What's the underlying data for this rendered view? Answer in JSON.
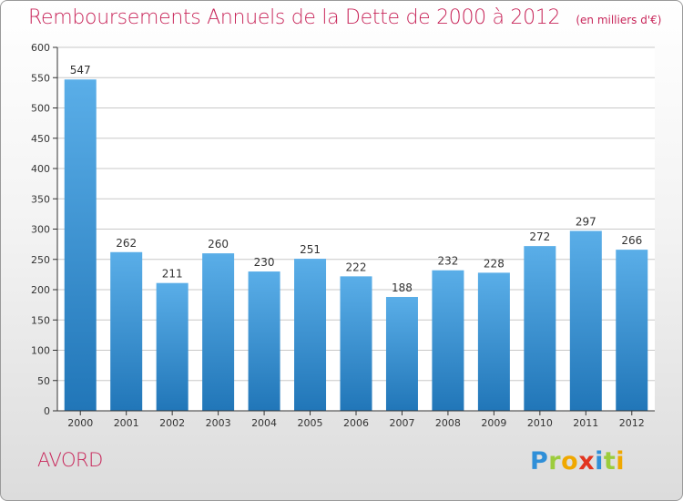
{
  "title": "Remboursements Annuels de la Dette de 2000 à 2012",
  "unit": "(en milliers d'€)",
  "commune": "AVORD",
  "logo": {
    "letters": [
      "P",
      "r",
      "o",
      "x",
      "i",
      "t",
      "i"
    ]
  },
  "colors": {
    "title": "#c8265a",
    "bar_top": "#5aaee8",
    "bar_bottom": "#2176b8",
    "grid": "#c8c8c8",
    "axis": "#333333"
  },
  "chart_data": {
    "type": "bar",
    "categories": [
      "2000",
      "2001",
      "2002",
      "2003",
      "2004",
      "2005",
      "2006",
      "2007",
      "2008",
      "2009",
      "2010",
      "2011",
      "2012"
    ],
    "values": [
      547,
      262,
      211,
      260,
      230,
      251,
      222,
      188,
      232,
      228,
      272,
      297,
      266
    ],
    "ylim": [
      0,
      600
    ],
    "yticks": [
      0,
      50,
      100,
      150,
      200,
      250,
      300,
      350,
      400,
      450,
      500,
      550,
      600
    ],
    "grid": true,
    "data_labels": true
  }
}
